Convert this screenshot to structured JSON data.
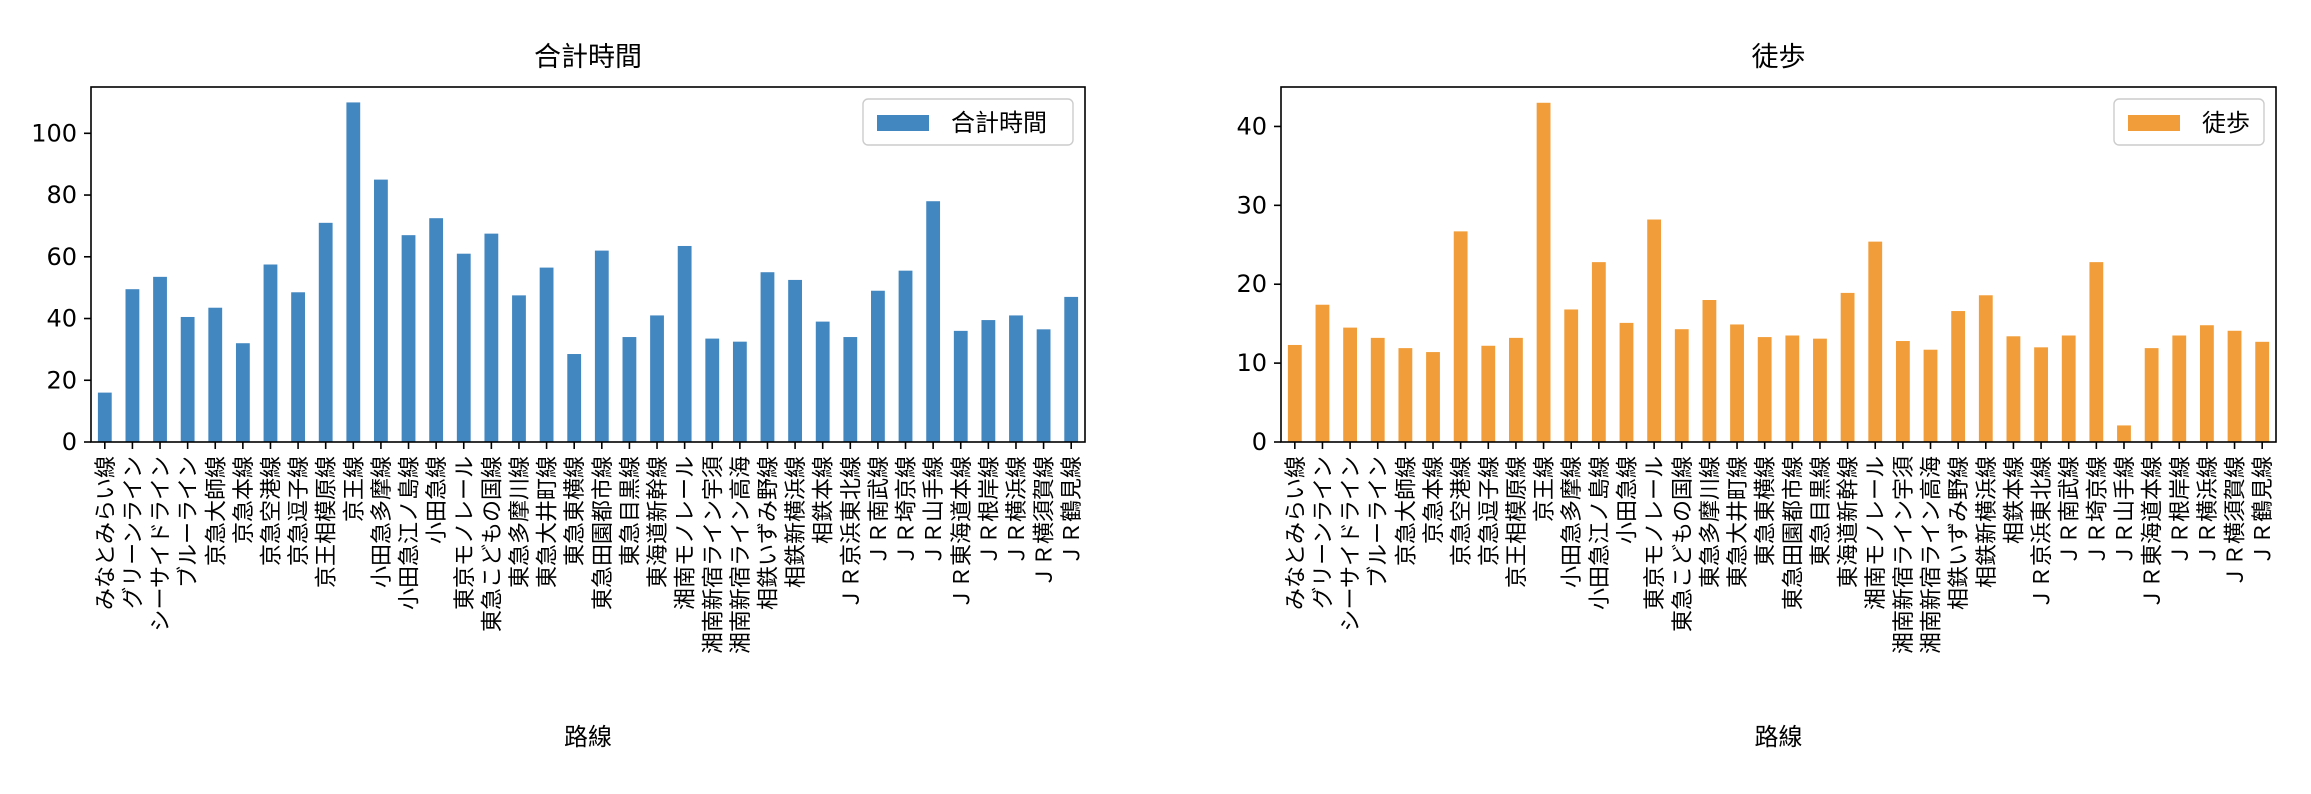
{
  "chart_data": [
    {
      "type": "bar",
      "title": "合計時間",
      "xlabel": "路線",
      "ylabel": "",
      "ylim": [
        0,
        115
      ],
      "yticks": [
        0,
        20,
        40,
        60,
        80,
        100
      ],
      "legend_position": "top-right",
      "color": "#4387c0",
      "categories": [
        "みなとみらい線",
        "グリーンライン",
        "シーサイドライン",
        "ブルーライン",
        "京急大師線",
        "京急本線",
        "京急空港線",
        "京急逗子線",
        "京王相模原線",
        "京王線",
        "小田急多摩線",
        "小田急江ノ島線",
        "小田急線",
        "東京モノレール",
        "東急こどもの国線",
        "東急多摩川線",
        "東急大井町線",
        "東急東横線",
        "東急田園都市線",
        "東急目黒線",
        "東海道新幹線",
        "湘南モノレール",
        "湘南新宿ライン宇須",
        "湘南新宿ライン高海",
        "相鉄いずみ野線",
        "相鉄新横浜線",
        "相鉄本線",
        "ＪＲ京浜東北線",
        "ＪＲ南武線",
        "ＪＲ埼京線",
        "ＪＲ山手線",
        "ＪＲ東海道本線",
        "ＪＲ根岸線",
        "ＪＲ横浜線",
        "ＪＲ横須賀線",
        "ＪＲ鶴見線"
      ],
      "series": [
        {
          "name": "合計時間",
          "values": [
            16,
            49.5,
            53.5,
            40.5,
            43.5,
            32,
            57.5,
            48.5,
            71,
            110,
            85,
            67,
            72.5,
            61,
            67.5,
            47.5,
            56.5,
            28.5,
            62,
            34,
            41,
            63.5,
            33.5,
            32.5,
            55,
            52.5,
            39,
            34,
            49,
            55.5,
            78,
            36,
            39.5,
            41,
            36.5,
            47
          ]
        }
      ]
    },
    {
      "type": "bar",
      "title": "徒歩",
      "xlabel": "路線",
      "ylabel": "",
      "ylim": [
        0,
        45
      ],
      "yticks": [
        0,
        10,
        20,
        30,
        40
      ],
      "legend_position": "top-right",
      "color": "#f19e3a",
      "categories": [
        "みなとみらい線",
        "グリーンライン",
        "シーサイドライン",
        "ブルーライン",
        "京急大師線",
        "京急本線",
        "京急空港線",
        "京急逗子線",
        "京王相模原線",
        "京王線",
        "小田急多摩線",
        "小田急江ノ島線",
        "小田急線",
        "東京モノレール",
        "東急こどもの国線",
        "東急多摩川線",
        "東急大井町線",
        "東急東横線",
        "東急田園都市線",
        "東急目黒線",
        "東海道新幹線",
        "湘南モノレール",
        "湘南新宿ライン宇須",
        "湘南新宿ライン高海",
        "相鉄いずみ野線",
        "相鉄新横浜線",
        "相鉄本線",
        "ＪＲ京浜東北線",
        "ＪＲ南武線",
        "ＪＲ埼京線",
        "ＪＲ山手線",
        "ＪＲ東海道本線",
        "ＪＲ根岸線",
        "ＪＲ横浜線",
        "ＪＲ横須賀線",
        "ＪＲ鶴見線"
      ],
      "series": [
        {
          "name": "徒歩",
          "values": [
            12.3,
            17.4,
            14.5,
            13.2,
            11.9,
            11.4,
            26.7,
            12.2,
            13.2,
            43,
            16.8,
            22.8,
            15.1,
            28.2,
            14.3,
            18,
            14.9,
            13.3,
            13.5,
            13.1,
            18.9,
            25.4,
            12.8,
            11.7,
            16.6,
            18.6,
            13.4,
            12,
            13.5,
            22.8,
            2.1,
            11.9,
            13.5,
            14.8,
            14.1,
            12.7
          ]
        }
      ]
    }
  ]
}
